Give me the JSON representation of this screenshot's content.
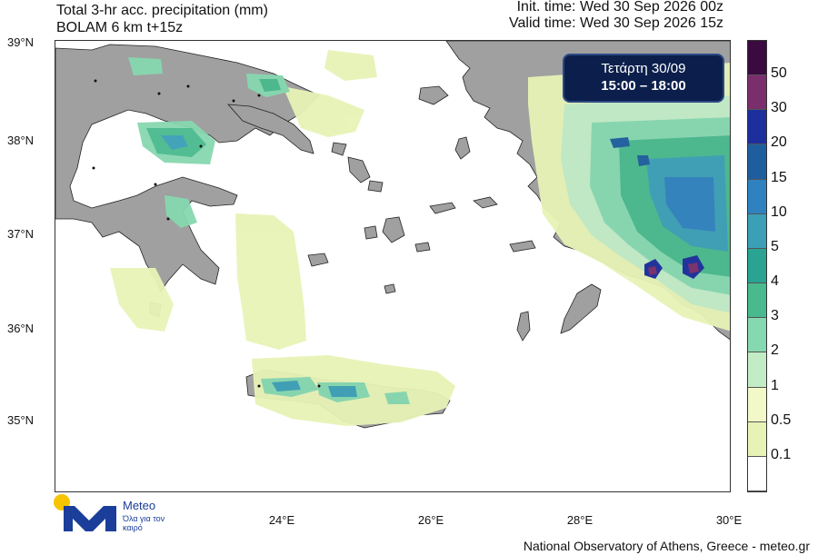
{
  "header": {
    "title_line1": "Total 3-hr acc. precipitation (mm)",
    "title_line2": "BOLAM 6 km t+15z",
    "init_time": "Init. time: Wed 30 Sep 2026 00z",
    "valid_time": "Valid time: Wed 30 Sep 2026 15z"
  },
  "date_box": {
    "day": "Τετάρτη 30/09",
    "hours": "15:00 – 18:00"
  },
  "axes": {
    "latitudes": [
      "39°N",
      "38°N",
      "37°N",
      "36°N",
      "35°N"
    ],
    "longitudes": [
      "24°E",
      "26°E",
      "28°E",
      "30°E"
    ]
  },
  "legend": {
    "labels": [
      "50",
      "30",
      "20",
      "15",
      "10",
      "5",
      "4",
      "3",
      "2",
      "1",
      "0.5",
      "0.1"
    ],
    "colors": [
      "#3a0a40",
      "#7a2e6c",
      "#1c2f9c",
      "#1e5e9e",
      "#2f82bf",
      "#3b9fb6",
      "#2aa392",
      "#49b98e",
      "#86d8b0",
      "#c2ecc6",
      "#f3f8c9",
      "#e7f3b6",
      "#ffffff"
    ]
  },
  "colors": {
    "land": "#a0a0a0",
    "sea": "#ffffff",
    "brand": "#1a3e9a",
    "logo_dot": "#f6c500"
  },
  "logo": {
    "name": "Meteo",
    "tagline": "Όλα για τον καιρό"
  },
  "footer": "National Observatory of Athens, Greece - meteo.gr"
}
